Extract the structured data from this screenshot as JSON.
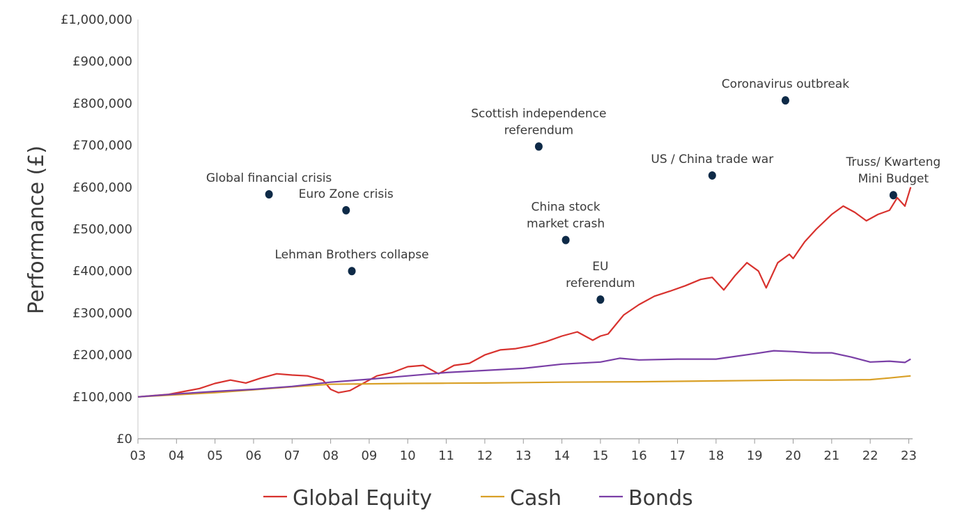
{
  "chart_data": {
    "type": "line",
    "title": "",
    "xlabel": "",
    "ylabel": "Performance (£)",
    "xlim": [
      2003,
      2023.1
    ],
    "ylim": [
      0,
      1000000
    ],
    "grid": false,
    "legend_position": "bottom",
    "x_tick_values": [
      2003,
      2004,
      2005,
      2006,
      2007,
      2008,
      2009,
      2010,
      2011,
      2012,
      2013,
      2014,
      2015,
      2016,
      2017,
      2018,
      2019,
      2020,
      2021,
      2022,
      2023
    ],
    "x_tick_labels": [
      "03",
      "04",
      "05",
      "06",
      "07",
      "08",
      "09",
      "10",
      "11",
      "12",
      "13",
      "14",
      "15",
      "16",
      "17",
      "18",
      "19",
      "20",
      "21",
      "22",
      "23"
    ],
    "y_tick_values": [
      0,
      100000,
      200000,
      300000,
      400000,
      500000,
      600000,
      700000,
      800000,
      900000,
      1000000
    ],
    "y_tick_labels": [
      "£0",
      "£100,000",
      "£200,000",
      "£300,000",
      "£400,000",
      "£500,000",
      "£600,000",
      "£700,000",
      "£800,000",
      "£900,000",
      "£1,000,000"
    ],
    "series": [
      {
        "name": "Global Equity",
        "color": "#d8322e",
        "x": [
          2003.0,
          2003.4,
          2003.8,
          2004.2,
          2004.6,
          2005.0,
          2005.4,
          2005.8,
          2006.2,
          2006.6,
          2007.0,
          2007.4,
          2007.8,
          2008.0,
          2008.2,
          2008.5,
          2008.8,
          2009.2,
          2009.6,
          2010.0,
          2010.4,
          2010.8,
          2011.2,
          2011.6,
          2012.0,
          2012.4,
          2012.8,
          2013.2,
          2013.6,
          2014.0,
          2014.4,
          2014.8,
          2015.0,
          2015.2,
          2015.6,
          2016.0,
          2016.4,
          2016.8,
          2017.2,
          2017.6,
          2017.9,
          2018.2,
          2018.5,
          2018.8,
          2019.1,
          2019.3,
          2019.6,
          2019.9,
          2020.0,
          2020.3,
          2020.6,
          2021.0,
          2021.3,
          2021.6,
          2021.9,
          2022.2,
          2022.5,
          2022.7,
          2022.9,
          2023.05
        ],
        "values": [
          100000,
          103000,
          106000,
          113000,
          120000,
          132000,
          140000,
          133000,
          145000,
          155000,
          152000,
          150000,
          140000,
          118000,
          110000,
          115000,
          130000,
          150000,
          158000,
          172000,
          175000,
          155000,
          175000,
          180000,
          200000,
          212000,
          215000,
          222000,
          232000,
          245000,
          255000,
          235000,
          245000,
          250000,
          295000,
          320000,
          340000,
          352000,
          365000,
          380000,
          385000,
          355000,
          390000,
          420000,
          400000,
          360000,
          420000,
          440000,
          430000,
          470000,
          500000,
          535000,
          555000,
          540000,
          520000,
          535000,
          545000,
          575000,
          555000,
          600000
        ]
      },
      {
        "name": "Cash",
        "color": "#d9a027",
        "x": [
          2003,
          2004,
          2005,
          2006,
          2007,
          2008,
          2009,
          2010,
          2011,
          2012,
          2013,
          2014,
          2015,
          2016,
          2017,
          2018,
          2019,
          2020,
          2021,
          2022,
          2022.5,
          2023.05
        ],
        "values": [
          100000,
          105000,
          110000,
          117000,
          124000,
          130000,
          131000,
          132000,
          132500,
          133000,
          134000,
          135000,
          135500,
          136000,
          137000,
          138000,
          139000,
          140000,
          140000,
          141000,
          145000,
          150000
        ]
      },
      {
        "name": "Bonds",
        "color": "#7a3fa6",
        "x": [
          2003,
          2004,
          2005,
          2006,
          2007,
          2008,
          2009,
          2010,
          2011,
          2012,
          2013,
          2014,
          2015,
          2015.5,
          2016,
          2017,
          2018,
          2019,
          2019.5,
          2020,
          2020.5,
          2021,
          2021.5,
          2022,
          2022.5,
          2022.9,
          2023.05
        ],
        "values": [
          100000,
          107000,
          113000,
          118000,
          125000,
          135000,
          142000,
          150000,
          158000,
          163000,
          168000,
          178000,
          183000,
          192000,
          188000,
          190000,
          190000,
          203000,
          210000,
          208000,
          205000,
          205000,
          195000,
          183000,
          185000,
          182000,
          190000
        ]
      }
    ],
    "annotations": [
      {
        "lines": [
          "Global financial crisis"
        ],
        "x": 2006.4,
        "y": 583000,
        "anchor": "above"
      },
      {
        "lines": [
          "Euro Zone crisis"
        ],
        "x": 2008.4,
        "y": 545000,
        "anchor": "above"
      },
      {
        "lines": [
          "Lehman Brothers collapse"
        ],
        "x": 2008.55,
        "y": 400000,
        "anchor": "above"
      },
      {
        "lines": [
          "Scottish  independence",
          "referendum"
        ],
        "x": 2013.4,
        "y": 697000,
        "anchor": "above"
      },
      {
        "lines": [
          "China stock",
          "market crash"
        ],
        "x": 2014.1,
        "y": 474000,
        "anchor": "above"
      },
      {
        "lines": [
          "EU",
          "referendum"
        ],
        "x": 2015.0,
        "y": 332000,
        "anchor": "above"
      },
      {
        "lines": [
          "US / China trade war"
        ],
        "x": 2017.9,
        "y": 628000,
        "anchor": "above"
      },
      {
        "lines": [
          "Coronavirus outbreak"
        ],
        "x": 2019.8,
        "y": 807000,
        "anchor": "above"
      },
      {
        "lines": [
          "Truss/ Kwarteng",
          "Mini Budget"
        ],
        "x": 2022.6,
        "y": 581000,
        "anchor": "above"
      }
    ],
    "annotation_color": "#0e2a47"
  }
}
